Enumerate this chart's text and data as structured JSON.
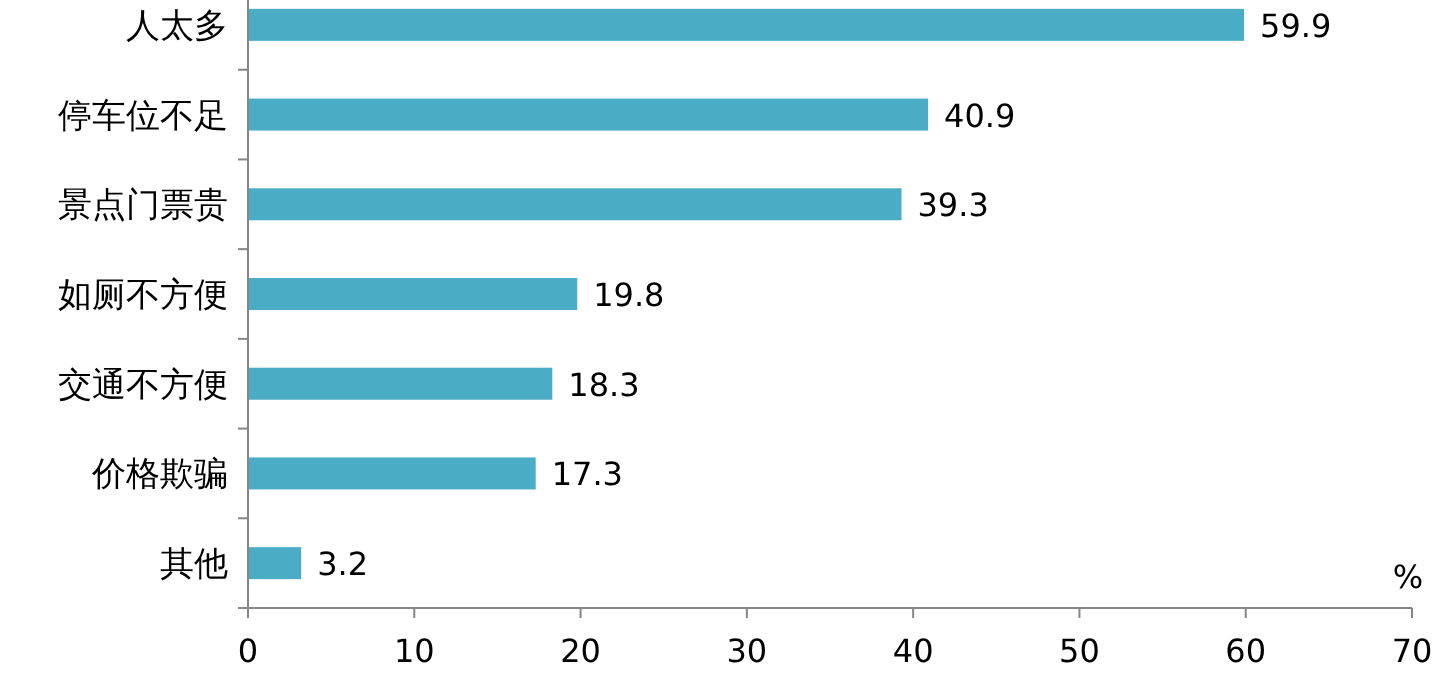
{
  "chart_data": {
    "type": "bar",
    "orientation": "horizontal",
    "xlabel": "%",
    "categories": [
      "人太多",
      "停车位不足",
      "景点门票贵",
      "如厕不方便",
      "交通不方便",
      "价格欺骗",
      "其他"
    ],
    "values": [
      59.9,
      40.9,
      39.3,
      19.8,
      18.3,
      17.3,
      3.2
    ],
    "color": "#4bacc6",
    "data_labels": true,
    "grid": false,
    "xlim": [
      0,
      70
    ],
    "xticks": [
      0,
      10,
      20,
      30,
      40,
      50,
      60,
      70
    ]
  }
}
